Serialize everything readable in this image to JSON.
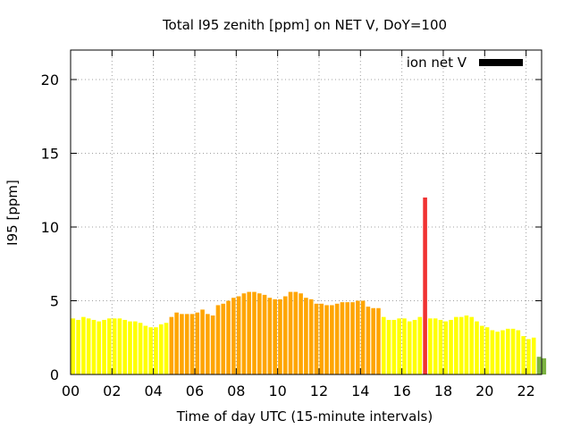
{
  "chart_data": {
    "type": "bar",
    "title": "Total I95 zenith [ppm] on NET V, DoY=100",
    "xlabel": "Time of day UTC (15-minute intervals)",
    "ylabel": "I95 [ppm]",
    "xlim": [
      0,
      22.75
    ],
    "ylim": [
      0,
      22
    ],
    "interval_hours": 0.25,
    "grid": true,
    "legend_position": "top-right",
    "x_ticks": [
      {
        "value": 0,
        "label": "00"
      },
      {
        "value": 2,
        "label": "02"
      },
      {
        "value": 4,
        "label": "04"
      },
      {
        "value": 6,
        "label": "06"
      },
      {
        "value": 8,
        "label": "08"
      },
      {
        "value": 10,
        "label": "10"
      },
      {
        "value": 12,
        "label": "12"
      },
      {
        "value": 14,
        "label": "14"
      },
      {
        "value": 16,
        "label": "16"
      },
      {
        "value": 18,
        "label": "18"
      },
      {
        "value": 20,
        "label": "20"
      },
      {
        "value": 22,
        "label": "22"
      }
    ],
    "y_ticks": [
      {
        "value": 0,
        "label": "0"
      },
      {
        "value": 5,
        "label": "5"
      },
      {
        "value": 10,
        "label": "10"
      },
      {
        "value": 15,
        "label": "15"
      },
      {
        "value": 20,
        "label": "20"
      }
    ],
    "legend": [
      {
        "label": "ion net V",
        "color": "#000000"
      }
    ],
    "series": [
      {
        "colors": {
          "Y": "#ffff00",
          "O": "#ffa500",
          "R": "#f03232",
          "G": "#7cb342"
        },
        "values": [
          3.8,
          3.7,
          3.9,
          3.8,
          3.7,
          3.6,
          3.7,
          3.8,
          3.8,
          3.8,
          3.7,
          3.6,
          3.6,
          3.5,
          3.3,
          3.2,
          3.2,
          3.4,
          3.5,
          3.9,
          4.2,
          4.1,
          4.1,
          4.1,
          4.2,
          4.4,
          4.1,
          4.0,
          4.7,
          4.8,
          5.0,
          5.2,
          5.3,
          5.5,
          5.6,
          5.6,
          5.5,
          5.4,
          5.2,
          5.1,
          5.1,
          5.3,
          5.6,
          5.6,
          5.5,
          5.2,
          5.1,
          4.8,
          4.8,
          4.7,
          4.7,
          4.8,
          4.9,
          4.9,
          4.9,
          5.0,
          5.0,
          4.6,
          4.5,
          4.5,
          3.9,
          3.7,
          3.7,
          3.8,
          3.8,
          3.6,
          3.7,
          3.9,
          12.0,
          3.8,
          3.8,
          3.7,
          3.6,
          3.7,
          3.9,
          3.9,
          4.0,
          3.9,
          3.6,
          3.3,
          3.2,
          3.0,
          2.9,
          3.0,
          3.1,
          3.1,
          3.0,
          2.6,
          2.4,
          2.5,
          1.2,
          1.1
        ],
        "value_colors": "YYYYYYYYYYYYYYYYYYYOOOOOOOOOOOOOOOOOOOOOOOOOOOOOOOOOOOOOOOOOYYYYYYYYRYYYYYYYYYYYYYYYYYYYYYGG"
      }
    ]
  }
}
